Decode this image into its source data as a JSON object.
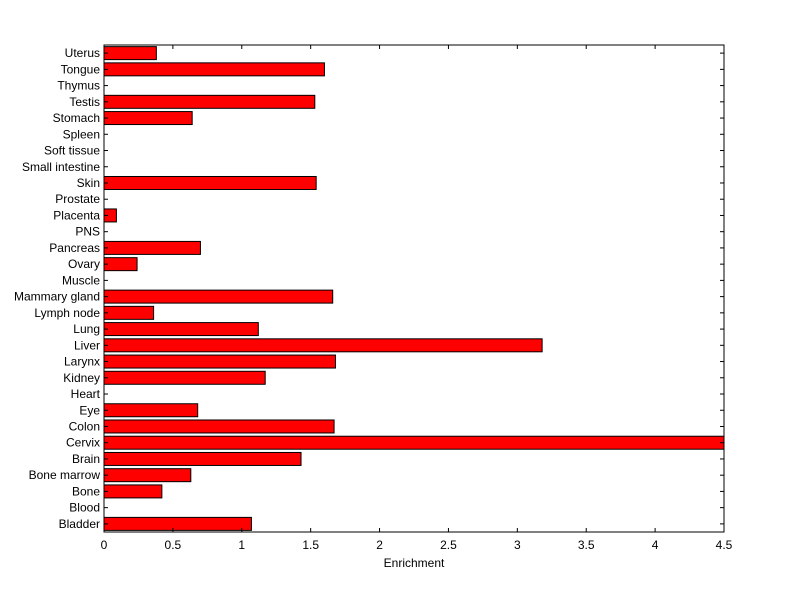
{
  "chart_data": {
    "type": "bar",
    "orientation": "horizontal",
    "categories": [
      "Bladder",
      "Blood",
      "Bone",
      "Bone marrow",
      "Brain",
      "Cervix",
      "Colon",
      "Eye",
      "Heart",
      "Kidney",
      "Larynx",
      "Liver",
      "Lung",
      "Lymph node",
      "Mammary gland",
      "Muscle",
      "Ovary",
      "Pancreas",
      "PNS",
      "Placenta",
      "Prostate",
      "Skin",
      "Small intestine",
      "Soft tissue",
      "Spleen",
      "Stomach",
      "Testis",
      "Thymus",
      "Tongue",
      "Uterus"
    ],
    "values": [
      1.07,
      0,
      0.42,
      0.63,
      1.43,
      4.5,
      1.67,
      0.68,
      0,
      1.17,
      1.68,
      3.18,
      1.12,
      0.36,
      1.66,
      0,
      0.24,
      0.7,
      0,
      0.09,
      0,
      1.54,
      0,
      0,
      0,
      0.64,
      1.53,
      0,
      1.6,
      0.38
    ],
    "xlabel": "Enrichment",
    "ylabel": "",
    "title": "",
    "xlim": [
      0,
      4.5
    ],
    "xticks": [
      "0",
      "0.5",
      "1",
      "1.5",
      "2",
      "2.5",
      "3",
      "3.5",
      "4",
      "4.5"
    ],
    "grid": false,
    "legend": "none",
    "colors": {
      "bar": "#ff0000",
      "edge": "#000000",
      "axis": "#000000",
      "background": "#ffffff"
    }
  }
}
